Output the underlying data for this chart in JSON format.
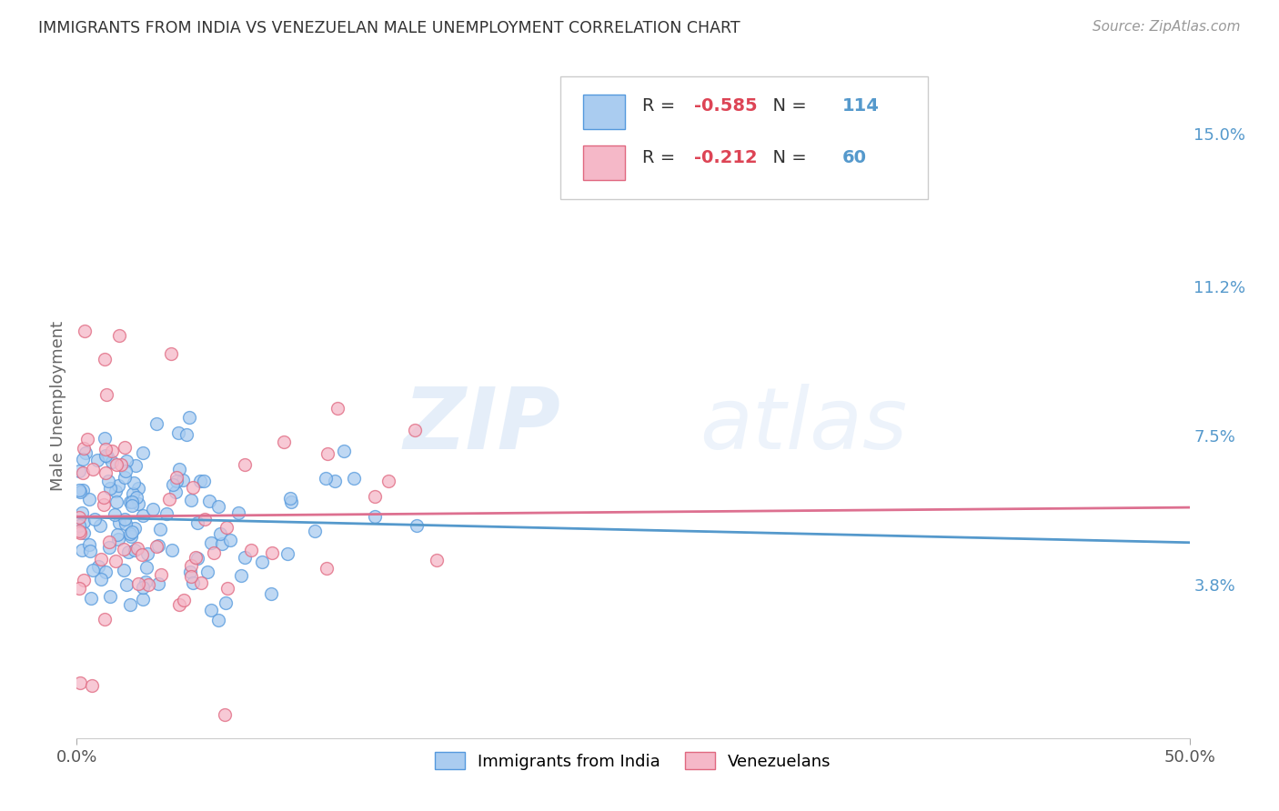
{
  "title": "IMMIGRANTS FROM INDIA VS VENEZUELAN MALE UNEMPLOYMENT CORRELATION CHART",
  "source": "Source: ZipAtlas.com",
  "ylabel": "Male Unemployment",
  "xlim": [
    0.0,
    0.5
  ],
  "ylim": [
    0.0,
    0.165
  ],
  "xtick_labels": [
    "0.0%",
    "50.0%"
  ],
  "xtick_positions": [
    0.0,
    0.5
  ],
  "ytick_labels": [
    "15.0%",
    "11.2%",
    "7.5%",
    "3.8%"
  ],
  "ytick_positions": [
    0.15,
    0.112,
    0.075,
    0.038
  ],
  "legend_labels": [
    "Immigrants from India",
    "Venezuelans"
  ],
  "color_india_face": "#aaccf0",
  "color_india_edge": "#5599dd",
  "color_venezuela_face": "#f5b8c8",
  "color_venezuela_edge": "#e06880",
  "color_india_line": "#5599cc",
  "color_venezuela_line": "#dd7090",
  "R_india": -0.585,
  "N_india": 114,
  "R_venezuela": -0.212,
  "N_venezuela": 60,
  "watermark_zip": "ZIP",
  "watermark_atlas": "atlas",
  "background_color": "#ffffff",
  "grid_color": "#cccccc",
  "title_color": "#333333",
  "axis_label_color": "#666666",
  "ytick_color": "#5599cc",
  "source_color": "#999999",
  "legend_R_color": "#dd4455",
  "legend_N_color": "#5599cc",
  "legend_text_color": "#333333"
}
